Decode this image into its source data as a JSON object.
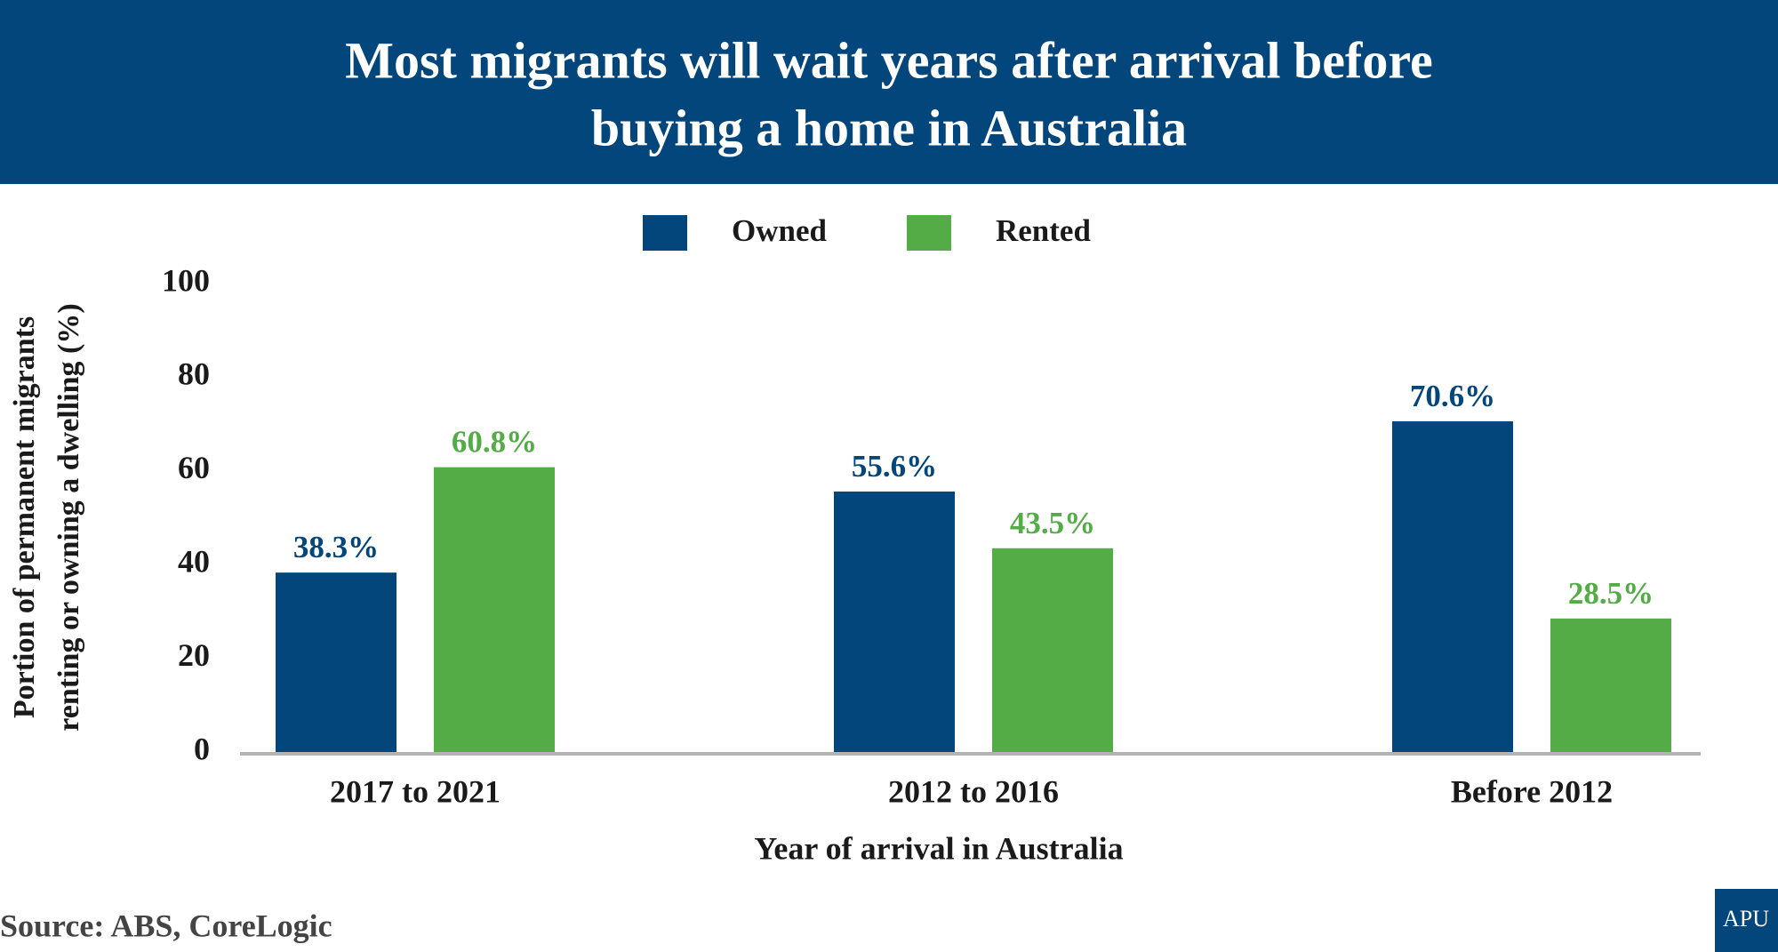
{
  "chart_data": {
    "type": "bar",
    "title": [
      "Most migrants will wait years after arrival before",
      "buying a home in Australia"
    ],
    "categories": [
      "2017 to 2021",
      "2012 to 2016",
      "Before 2012"
    ],
    "series": [
      {
        "name": "Owned",
        "color": "#03467c",
        "values": [
          38.3,
          55.6,
          70.6
        ],
        "value_labels": [
          "38.3%",
          "55.6%",
          "70.6%"
        ]
      },
      {
        "name": "Rented",
        "color": "#54ac47",
        "values": [
          60.8,
          43.5,
          28.5
        ],
        "value_labels": [
          "60.8%",
          "43.5%",
          "28.5%"
        ]
      }
    ],
    "ylim": [
      0,
      100
    ],
    "yticks": [
      0,
      20,
      40,
      60,
      80,
      100
    ],
    "y_label": [
      "Portion of permanent migrants",
      "renting or owning a dwelling (%)"
    ],
    "x_label": "Year of arrival in Australia",
    "grid": false,
    "legend": "top",
    "source": "Source: ABS, CoreLogic",
    "logo": "APU"
  }
}
